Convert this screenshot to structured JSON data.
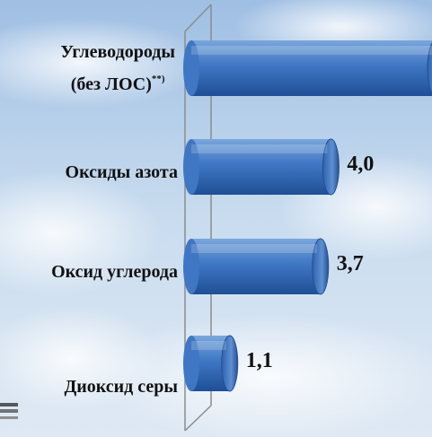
{
  "chart_data": {
    "type": "bar",
    "orientation": "horizontal",
    "categories": [
      {
        "line1": "Углеводороды",
        "line2": "(без ЛОС)",
        "sup": "**)"
      },
      {
        "line1": "Оксиды азота"
      },
      {
        "line1": "Оксид углерода"
      },
      {
        "line1": "Диоксид серы"
      }
    ],
    "values": [
      7.0,
      4.0,
      3.7,
      1.1
    ],
    "value_labels": [
      "",
      "4,0",
      "3,7",
      "1,1"
    ],
    "xlim": [
      0,
      7.0
    ],
    "grid": false,
    "legend": "none",
    "colors": {
      "bar_light": "#7aa6dc",
      "bar_mid": "#3f77c4",
      "bar_dark": "#1f4f95",
      "axis": "#8c8c8c"
    }
  }
}
